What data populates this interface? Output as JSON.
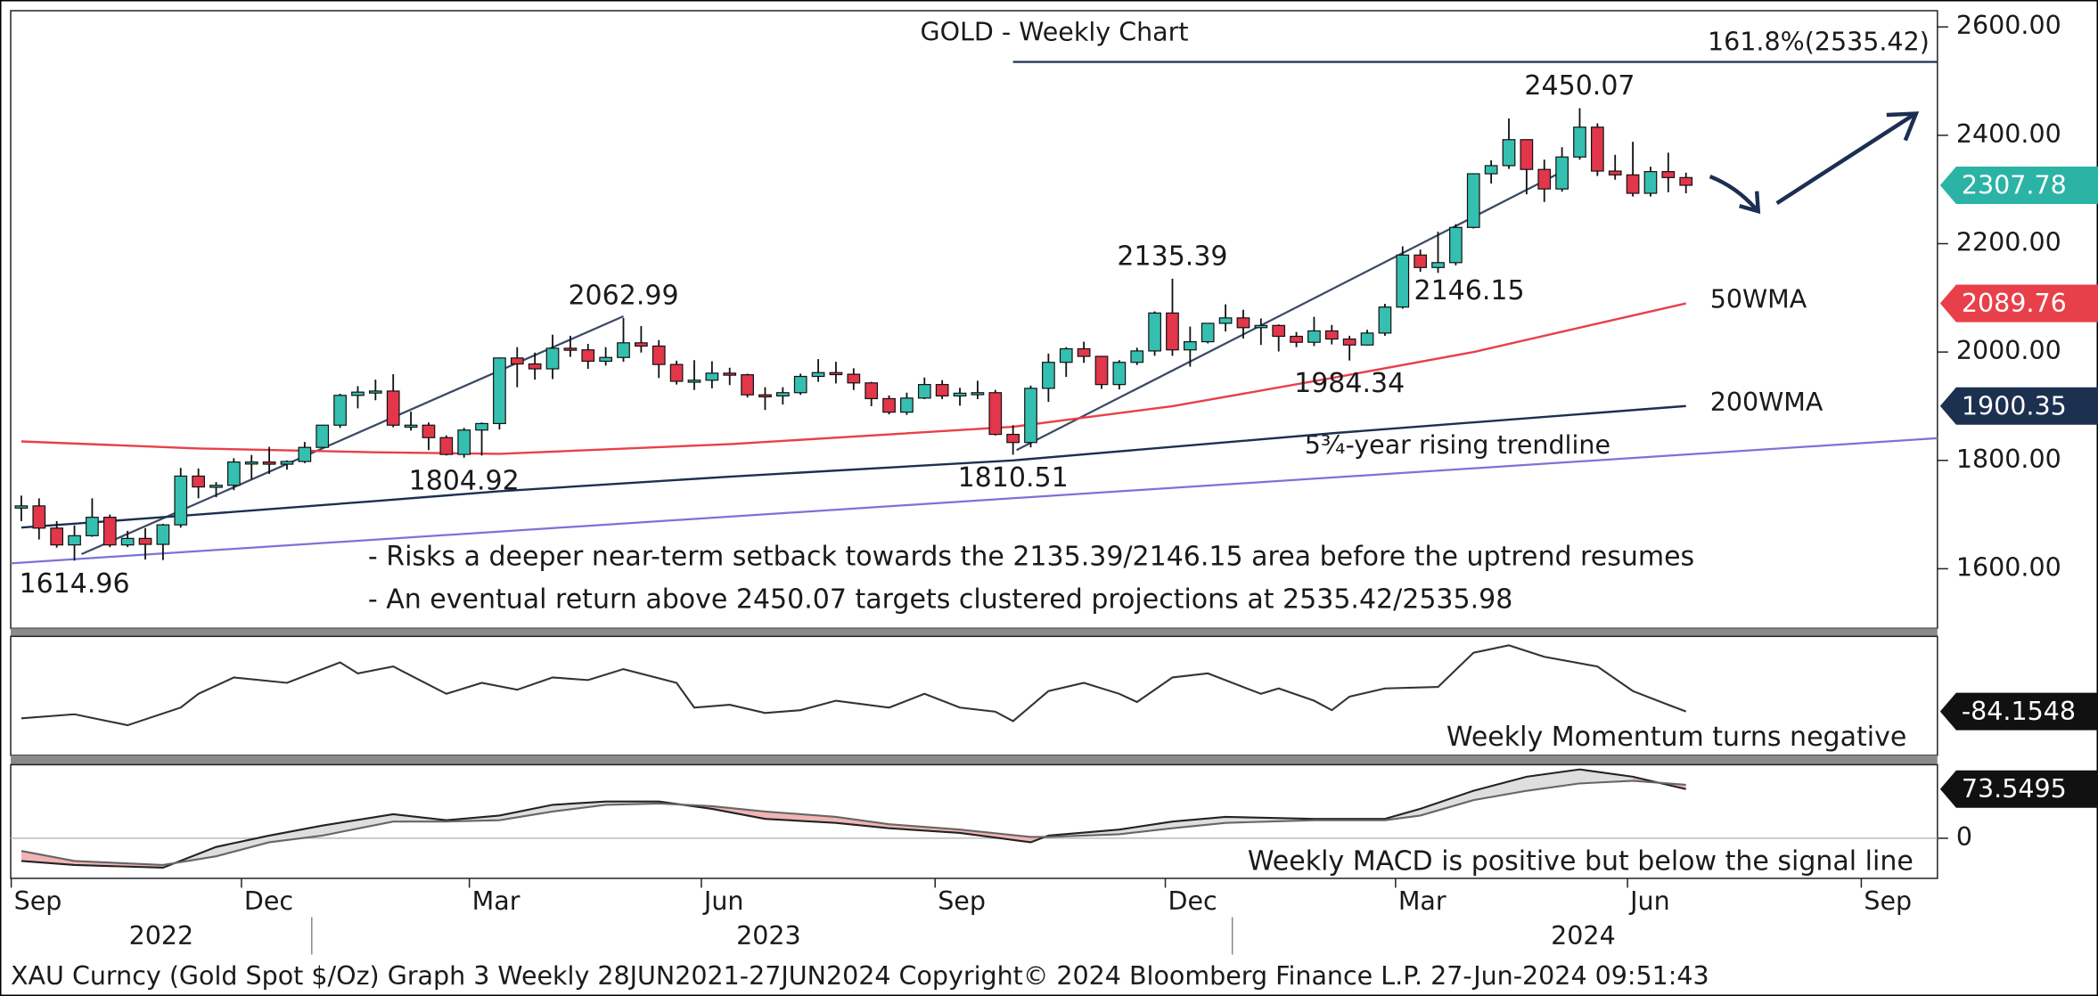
{
  "chart_data": {
    "type": "candlestick",
    "title": "GOLD - Weekly Chart",
    "xlim": [
      -0.6,
      108.2
    ],
    "xticks": [
      {
        "value": -0.57,
        "label": "Sep"
      },
      {
        "value": 12.43,
        "label": "Dec"
      },
      {
        "value": 25.3,
        "label": "Mar"
      },
      {
        "value": 38.4,
        "label": "Jun"
      },
      {
        "value": 51.6,
        "label": "Sep"
      },
      {
        "value": 64.6,
        "label": "Dec"
      },
      {
        "value": 77.6,
        "label": "Mar"
      },
      {
        "value": 90.7,
        "label": "Jun"
      },
      {
        "value": 103.9,
        "label": "Sep"
      }
    ],
    "year_ticks": [
      {
        "value": 7.9,
        "label": "2022"
      },
      {
        "value": 42.2,
        "label": "2023"
      },
      {
        "value": 88.2,
        "label": "2024"
      }
    ],
    "ylim": [
      1490,
      2630
    ],
    "yticks": [
      {
        "value": 1600,
        "label": "1600.00"
      },
      {
        "value": 1800,
        "label": "1800.00"
      },
      {
        "value": 2000,
        "label": "2000.00"
      },
      {
        "value": 2200,
        "label": "2200.00"
      },
      {
        "value": 2400,
        "label": "2400.00"
      },
      {
        "value": 2600,
        "label": "2600.00"
      }
    ],
    "up_color": "#35bfb0",
    "down_color": "#e2364a",
    "last_color": "#2bb3a6",
    "open": [
      1712,
      1716,
      1675,
      1644,
      1661,
      1695,
      1644,
      1656,
      1645,
      1681,
      1771,
      1751,
      1754,
      1797,
      1797,
      1793,
      1798,
      1824,
      1865,
      1920,
      1926,
      1928,
      1865,
      1865,
      1842,
      1811,
      1856,
      1868,
      1989,
      1978,
      1969,
      2007,
      2004,
      1983,
      1990,
      2017,
      2011,
      1977,
      1946,
      1948,
      1961,
      1958,
      1921,
      1919,
      1925,
      1955,
      1962,
      1959,
      1943,
      1914,
      1889,
      1915,
      1940,
      1919,
      1924,
      1925,
      1848,
      1833,
      1933,
      1981,
      2006,
      1992,
      1940,
      1981,
      2002,
      2072,
      2004,
      2019,
      2053,
      2063,
      2045,
      2049,
      2029,
      2018,
      2039,
      2024,
      2013,
      2035,
      2083,
      2179,
      2156,
      2165,
      2230,
      2329,
      2344,
      2392,
      2337,
      2301,
      2360,
      2415,
      2334,
      2327,
      2293,
      2333,
      2322
    ],
    "high": [
      1735,
      1730,
      1688,
      1680,
      1730,
      1700,
      1670,
      1675,
      1683,
      1786,
      1785,
      1760,
      1804,
      1810,
      1825,
      1800,
      1834,
      1865,
      1923,
      1937,
      1949,
      1959,
      1890,
      1870,
      1846,
      1860,
      1870,
      1990,
      2009,
      1999,
      2032,
      2030,
      2015,
      2009,
      2062.99,
      2048,
      2022,
      1984,
      1985,
      1983,
      1971,
      1960,
      1935,
      1935,
      1960,
      1987,
      1982,
      1970,
      1945,
      1920,
      1925,
      1953,
      1948,
      1934,
      1947,
      1930,
      1865,
      1938,
      1997,
      2009,
      2019,
      1993,
      1985,
      2008,
      2075,
      2135.39,
      2047,
      2053,
      2088,
      2078,
      2062,
      2051,
      2037,
      2065,
      2050,
      2030,
      2041,
      2089,
      2195,
      2189,
      2222,
      2236,
      2330,
      2354,
      2431,
      2392,
      2355,
      2378,
      2450.07,
      2422,
      2364,
      2388,
      2342,
      2368,
      2331
    ],
    "low": [
      1688,
      1654,
      1639,
      1614.96,
      1659,
      1640,
      1640,
      1617,
      1616,
      1676,
      1730,
      1732,
      1745,
      1765,
      1775,
      1783,
      1795,
      1824,
      1860,
      1896,
      1911,
      1861,
      1855,
      1819,
      1809,
      1804.92,
      1809,
      1857,
      1935,
      1949,
      1950,
      1991,
      1969,
      1975,
      1982,
      1999,
      1952,
      1940,
      1930,
      1933,
      1939,
      1916,
      1893,
      1903,
      1921,
      1945,
      1942,
      1930,
      1900,
      1885,
      1884,
      1913,
      1913,
      1901,
      1913,
      1846,
      1810.51,
      1824,
      1908,
      1954,
      1980,
      1932,
      1931,
      1976,
      1993,
      1993,
      1973,
      2016,
      2038,
      2025,
      2013,
      2001,
      2009,
      2011,
      2014,
      1984.34,
      2012,
      2030,
      2080,
      2148,
      2146.15,
      2160,
      2228,
      2311,
      2338,
      2291,
      2277,
      2296,
      2355,
      2325,
      2318,
      2287,
      2287,
      2295,
      2293
    ],
    "close": [
      1716,
      1675,
      1644,
      1661,
      1695,
      1644,
      1656,
      1645,
      1681,
      1771,
      1751,
      1754,
      1797,
      1797,
      1793,
      1798,
      1824,
      1865,
      1920,
      1926,
      1928,
      1865,
      1865,
      1842,
      1811,
      1856,
      1868,
      1989,
      1978,
      1969,
      2007,
      2004,
      1983,
      1990,
      2017,
      2011,
      1977,
      1946,
      1948,
      1961,
      1958,
      1921,
      1919,
      1925,
      1955,
      1962,
      1959,
      1943,
      1914,
      1889,
      1915,
      1940,
      1919,
      1924,
      1925,
      1848,
      1833,
      1933,
      1981,
      2006,
      1992,
      1940,
      1981,
      2002,
      2072,
      2004,
      2019,
      2053,
      2063,
      2045,
      2049,
      2029,
      2018,
      2039,
      2024,
      2013,
      2035,
      2083,
      2179,
      2156,
      2165,
      2230,
      2329,
      2344,
      2392,
      2337,
      2301,
      2360,
      2415,
      2334,
      2327,
      2293,
      2333,
      2322,
      2307.78
    ],
    "moving_averages": [
      {
        "name": "50WMA",
        "color": "#e8404a",
        "x": [
          0,
          10,
          20,
          27,
          40,
          56,
          65,
          74,
          82,
          88,
          94
        ],
        "values": [
          1835,
          1822,
          1815,
          1812,
          1830,
          1862,
          1900,
          1952,
          2000,
          2045,
          2089.76
        ]
      },
      {
        "name": "200WMA",
        "color": "#1c3050",
        "x": [
          0,
          10,
          20,
          27,
          40,
          56,
          74,
          94
        ],
        "values": [
          1676,
          1700,
          1725,
          1743,
          1770,
          1800,
          1850,
          1900.35
        ]
      }
    ],
    "trendlines": [
      {
        "color": "#7b73d6",
        "points": [
          [
            -0.6,
            1610
          ],
          [
            108.2,
            1841
          ]
        ]
      },
      {
        "color": "#3c4a66",
        "points": [
          [
            3.4,
            1627
          ],
          [
            34,
            2066
          ]
        ]
      },
      {
        "color": "#3c4a66",
        "points": [
          [
            56.2,
            1819
          ],
          [
            87.2,
            2336
          ]
        ]
      }
    ],
    "trendline_label": "5¾-year rising trendline",
    "fib": {
      "label": "161.8%(2535.42)",
      "value": 2535.42,
      "from": 56
    },
    "annotations": [
      {
        "x": 3,
        "value": 1614.96,
        "pos": "below"
      },
      {
        "x": 25,
        "value": 1804.92,
        "pos": "below"
      },
      {
        "x": 34,
        "value": 2062.99,
        "pos": "above"
      },
      {
        "x": 56,
        "value": 1810.51,
        "pos": "below"
      },
      {
        "x": 65,
        "value": 2135.39,
        "pos": "above"
      },
      {
        "x": 75,
        "value": 1984.34,
        "pos": "below"
      },
      {
        "x": 80,
        "value": 2146.15,
        "pos": "below-right"
      },
      {
        "x": 88,
        "value": 2450.07,
        "pos": "above"
      }
    ],
    "notes": [
      "- Risks a deeper near-term setback towards the 2135.39/2146.15 area before the uptrend resumes",
      "- An eventual return above 2450.07 targets clustered projections at 2535.42/2535.98"
    ],
    "momentum": {
      "type": "line",
      "label": "Weekly Momentum turns negative",
      "color": "#333333",
      "ylim": [
        -320,
        320
      ],
      "x": [
        0,
        3,
        6,
        9,
        10,
        12,
        15,
        18,
        19,
        21,
        24,
        26,
        28,
        30,
        32,
        34,
        37,
        38,
        40,
        42,
        44,
        46,
        49,
        51,
        53,
        55,
        56,
        58,
        60,
        62,
        63,
        65,
        67,
        70,
        71,
        73,
        74,
        75,
        77,
        80,
        82,
        84,
        86,
        89,
        91,
        93,
        94
      ],
      "values": [
        -121,
        -99,
        -158,
        -63,
        11,
        99,
        70,
        180,
        121,
        158,
        11,
        70,
        33,
        99,
        85,
        144,
        70,
        -63,
        -48,
        -92,
        -77,
        -26,
        -63,
        11,
        -63,
        -85,
        -136,
        26,
        70,
        11,
        -33,
        99,
        121,
        11,
        40,
        -26,
        -77,
        -4,
        40,
        48,
        232,
        272,
        210,
        158,
        26,
        -48,
        -84.1548
      ]
    },
    "macd": {
      "type": "line",
      "label": "Weekly MACD is positive but below the signal line",
      "ylim": [
        -60,
        110
      ],
      "yticks": [
        0
      ],
      "x": [
        0,
        3,
        8,
        11,
        14,
        17,
        21,
        24,
        27,
        30,
        33,
        36,
        39,
        42,
        46,
        49,
        53,
        57,
        58,
        62,
        65,
        68,
        73,
        77,
        79,
        82,
        85,
        88,
        91,
        94
      ],
      "series": [
        {
          "color": "#222222",
          "values": [
            -34,
            -40,
            -44,
            -13,
            4,
            19,
            36,
            27,
            34,
            50,
            55,
            55,
            44,
            29,
            23,
            15,
            8,
            -6,
            4,
            13,
            25,
            32,
            29,
            29,
            44,
            71,
            92,
            103,
            92,
            73.5495
          ]
        },
        {
          "color": "#666666",
          "values": [
            -19,
            -34,
            -40,
            -27,
            -6,
            4,
            25,
            25,
            27,
            40,
            50,
            52,
            48,
            40,
            32,
            21,
            13,
            2,
            2,
            6,
            15,
            23,
            27,
            27,
            34,
            57,
            71,
            82,
            86,
            80
          ]
        }
      ]
    },
    "footer": "XAU Curncy (Gold Spot  $/Oz) Graph 3  Weekly 28JUN2021-27JUN2024 Copyright© 2024 Bloomberg Finance L.P.  27-Jun-2024 09:51:43"
  }
}
